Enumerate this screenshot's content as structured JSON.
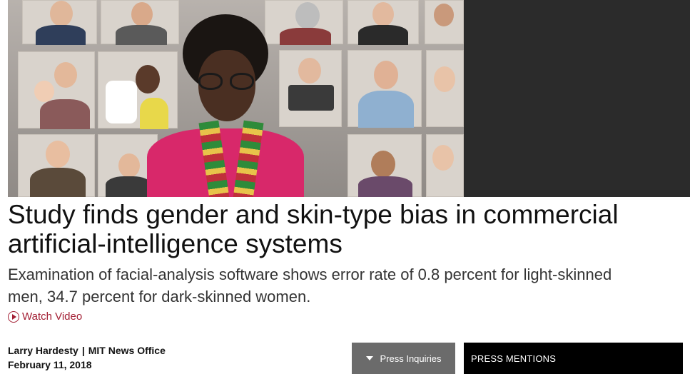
{
  "article": {
    "headline": "Study finds gender and skin-type bias in commercial artificial-intelligence systems",
    "dek": "Examination of facial-analysis software shows error rate of 0.8 percent for light-skinned men, 34.7 percent for dark-skinned women.",
    "watch_video_label": "Watch Video"
  },
  "byline": {
    "author": "Larry Hardesty",
    "separator": "|",
    "office": "MIT News Office",
    "date": "February 11, 2018"
  },
  "actions": {
    "press_inquiries_label": "Press Inquiries",
    "press_mentions_label": "PRESS MENTIONS"
  },
  "icons": {
    "play": "play-circle-icon",
    "caret": "caret-down-icon"
  },
  "colors": {
    "accent": "#a31f34",
    "press_inquiries_bg": "#6b6b6b",
    "press_mentions_bg": "#000000"
  }
}
